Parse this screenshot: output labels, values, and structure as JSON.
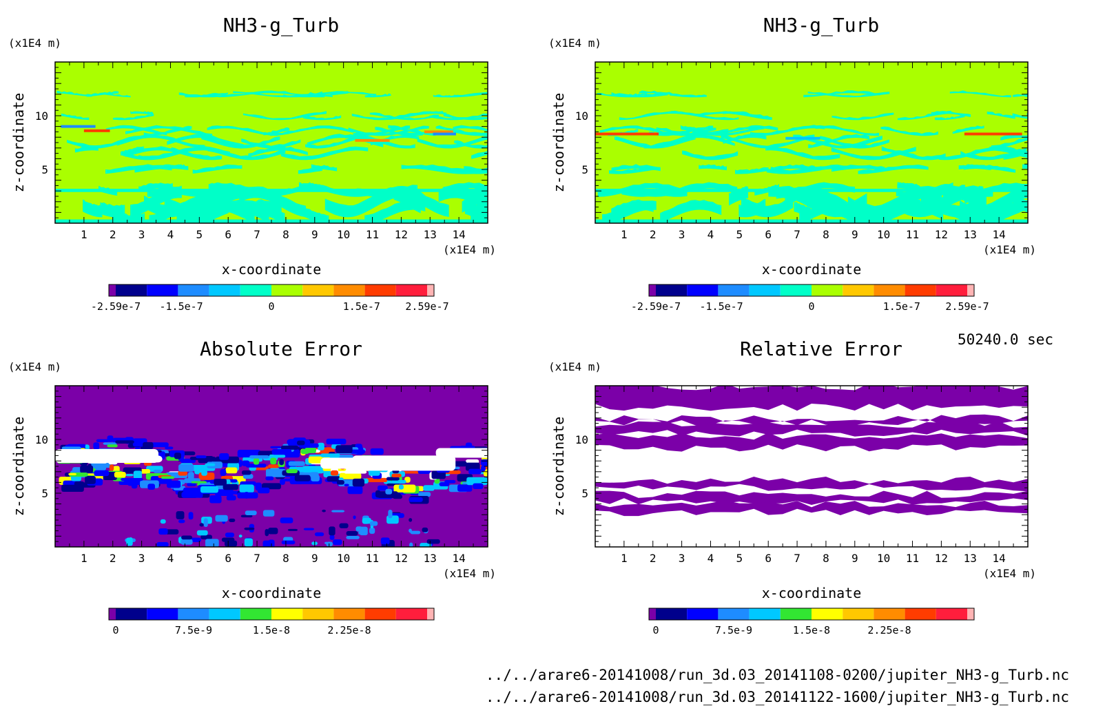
{
  "figure": {
    "time_label": "50240.0 sec",
    "files": [
      "../../arare6-20141008/run_3d.03_20141108-0200/jupiter_NH3-g_Turb.nc",
      "../../arare6-20141008/run_3d.03_20141122-1600/jupiter_NH3-g_Turb.nc"
    ]
  },
  "chart_data": [
    {
      "type": "heatmap",
      "title": "NH3-g_Turb",
      "xlabel": "x-coordinate",
      "ylabel": "z-coordinate",
      "x_unit": "(x1E4 m)",
      "y_unit": "(x1E4 m)",
      "xlim": [
        0,
        15
      ],
      "ylim": [
        0,
        15
      ],
      "x_ticks": [
        1,
        2,
        3,
        4,
        5,
        6,
        7,
        8,
        9,
        10,
        11,
        12,
        13,
        14
      ],
      "y_ticks": [
        5,
        10
      ],
      "background_level": "green",
      "colorbar": {
        "colors": [
          "#7b00a8",
          "#00008c",
          "#0000ff",
          "#1e8cff",
          "#00c8ff",
          "#00ffc8",
          "#aaff00",
          "#ffc800",
          "#ff8c00",
          "#ff3c00",
          "#ff1e3c",
          "#ffb4b4"
        ],
        "tick_labels": [
          "-2.59e-7",
          "-1.5e-7",
          "0",
          "1.5e-7",
          "2.59e-7"
        ],
        "tick_values": [
          -2.59e-07,
          -1.5e-07,
          0,
          1.5e-07,
          2.59e-07
        ],
        "range": [
          -2.59e-07,
          2.59e-07
        ]
      }
    },
    {
      "type": "heatmap",
      "title": "NH3-g_Turb",
      "xlabel": "x-coordinate",
      "ylabel": "z-coordinate",
      "x_unit": "(x1E4 m)",
      "y_unit": "(x1E4 m)",
      "xlim": [
        0,
        15
      ],
      "ylim": [
        0,
        15
      ],
      "x_ticks": [
        1,
        2,
        3,
        4,
        5,
        6,
        7,
        8,
        9,
        10,
        11,
        12,
        13,
        14
      ],
      "y_ticks": [
        5,
        10
      ],
      "background_level": "green",
      "colorbar": {
        "colors": [
          "#7b00a8",
          "#00008c",
          "#0000ff",
          "#1e8cff",
          "#00c8ff",
          "#00ffc8",
          "#aaff00",
          "#ffc800",
          "#ff8c00",
          "#ff3c00",
          "#ff1e3c",
          "#ffb4b4"
        ],
        "tick_labels": [
          "-2.59e-7",
          "-1.5e-7",
          "0",
          "1.5e-7",
          "2.59e-7"
        ],
        "tick_values": [
          -2.59e-07,
          -1.5e-07,
          0,
          1.5e-07,
          2.59e-07
        ],
        "range": [
          -2.59e-07,
          2.59e-07
        ]
      }
    },
    {
      "type": "heatmap",
      "title": "Absolute Error",
      "xlabel": "x-coordinate",
      "ylabel": "z-coordinate",
      "x_unit": "(x1E4 m)",
      "y_unit": "(x1E4 m)",
      "xlim": [
        0,
        15
      ],
      "ylim": [
        0,
        15
      ],
      "x_ticks": [
        1,
        2,
        3,
        4,
        5,
        6,
        7,
        8,
        9,
        10,
        11,
        12,
        13,
        14
      ],
      "y_ticks": [
        5,
        10
      ],
      "background_level": "purple",
      "colorbar": {
        "colors": [
          "#7b00a8",
          "#00008c",
          "#0000ff",
          "#1e8cff",
          "#00c8ff",
          "#32e632",
          "#ffff00",
          "#ffc800",
          "#ff8c00",
          "#ff3c00",
          "#ff1e3c",
          "#ffb4b4"
        ],
        "tick_labels": [
          "0",
          "7.5e-9",
          "1.5e-8",
          "2.25e-8"
        ],
        "tick_values": [
          0,
          7.5e-09,
          1.5e-08,
          2.25e-08
        ],
        "range": [
          0,
          3e-08
        ]
      }
    },
    {
      "type": "heatmap",
      "title": "Relative Error",
      "xlabel": "x-coordinate",
      "ylabel": "z-coordinate",
      "x_unit": "(x1E4 m)",
      "y_unit": "(x1E4 m)",
      "xlim": [
        0,
        15
      ],
      "ylim": [
        0,
        15
      ],
      "x_ticks": [
        1,
        2,
        3,
        4,
        5,
        6,
        7,
        8,
        9,
        10,
        11,
        12,
        13,
        14
      ],
      "y_ticks": [
        5,
        10
      ],
      "background_level": "white",
      "colorbar": {
        "colors": [
          "#7b00a8",
          "#00008c",
          "#0000ff",
          "#1e8cff",
          "#00c8ff",
          "#32e632",
          "#ffff00",
          "#ffc800",
          "#ff8c00",
          "#ff3c00",
          "#ff1e3c",
          "#ffb4b4"
        ],
        "tick_labels": [
          "0",
          "7.5e-9",
          "1.5e-8",
          "2.25e-8"
        ],
        "tick_values": [
          0,
          7.5e-09,
          1.5e-08,
          2.25e-08
        ],
        "range": [
          0,
          3e-08
        ]
      }
    }
  ]
}
